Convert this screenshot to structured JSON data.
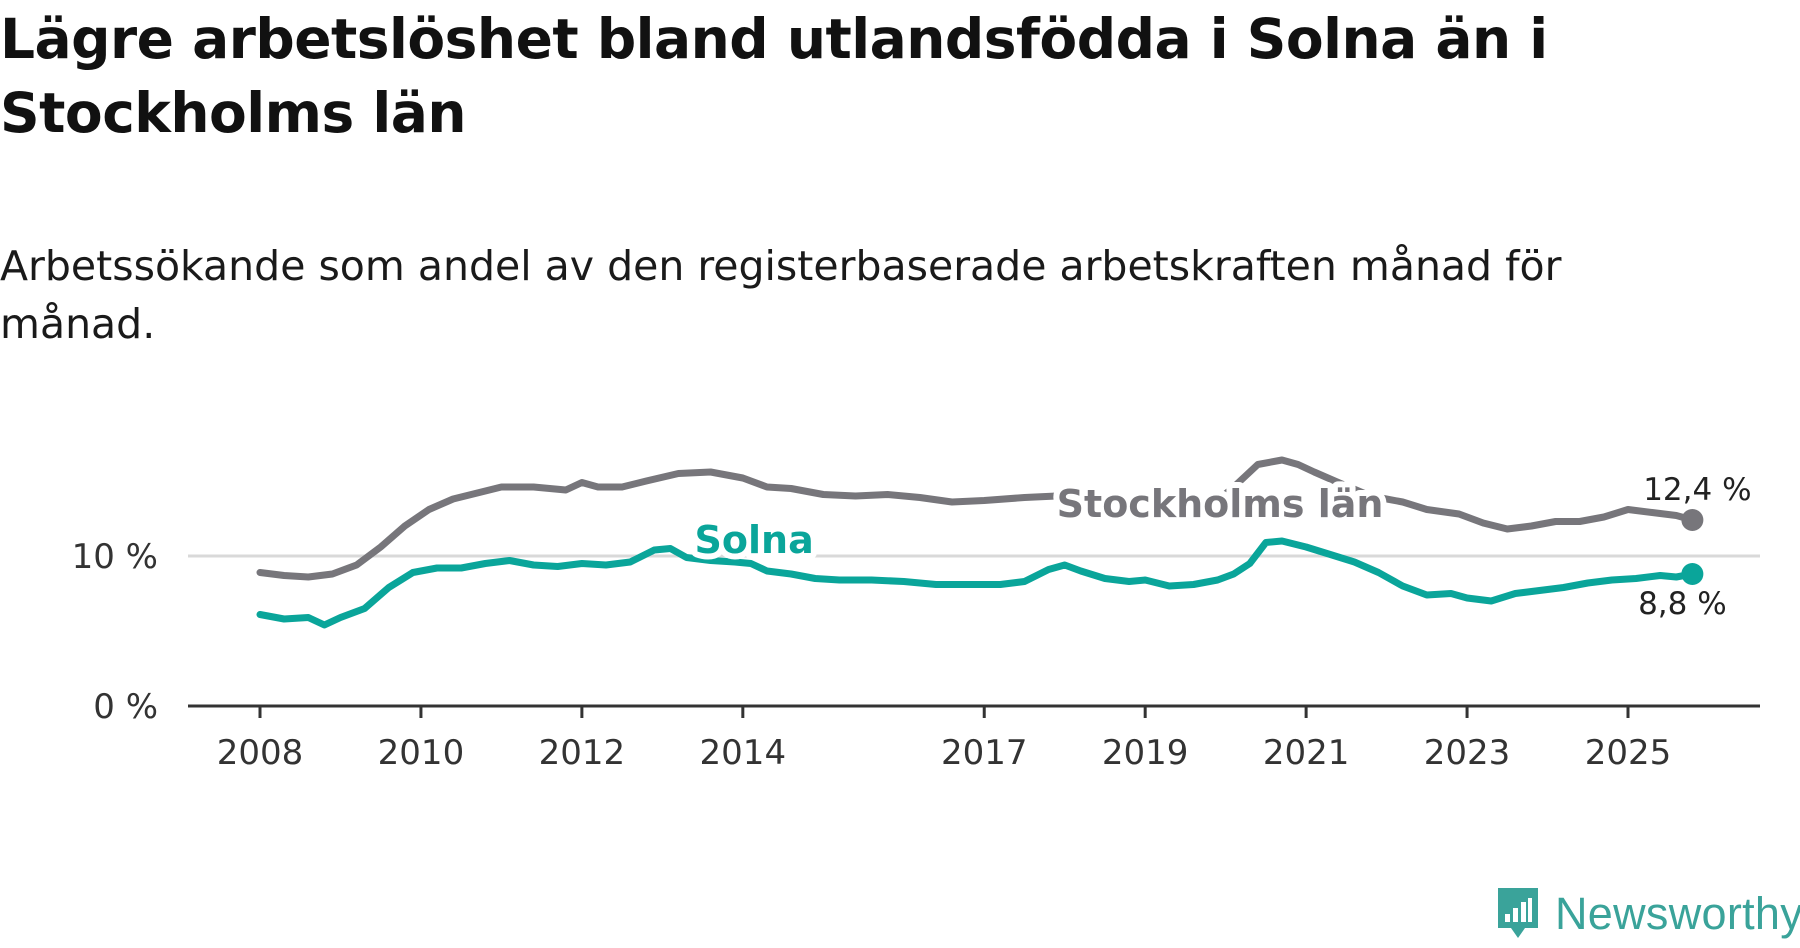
{
  "title": "Lägre arbetslöshet bland utlandsfödda i Solna än i Stockholms län",
  "subtitle": "Arbetssökande som andel av den registerbaserade arbetskraften månad för månad.",
  "brand": {
    "name": "Newsworthy",
    "color": "#3aa39a"
  },
  "colors": {
    "solna": "#0aa59a",
    "stockholm": "#77767b",
    "axis": "#333333",
    "grid": "#d9d9d9"
  },
  "chart_data": {
    "type": "line",
    "title": "Lägre arbetslöshet bland utlandsfödda i Solna än i Stockholms län",
    "xlabel": "",
    "ylabel": "",
    "xlim": [
      2008,
      2026.8
    ],
    "ylim": [
      0,
      17
    ],
    "y_ticks": [
      {
        "value": 0,
        "label": "0 %"
      },
      {
        "value": 10,
        "label": "10 %"
      }
    ],
    "x_ticks": [
      {
        "value": 2008,
        "label": "2008"
      },
      {
        "value": 2010,
        "label": "2010"
      },
      {
        "value": 2012,
        "label": "2012"
      },
      {
        "value": 2014,
        "label": "2014"
      },
      {
        "value": 2017,
        "label": "2017"
      },
      {
        "value": 2019,
        "label": "2019"
      },
      {
        "value": 2021,
        "label": "2021"
      },
      {
        "value": 2023,
        "label": "2023"
      },
      {
        "value": 2025,
        "label": "2025"
      }
    ],
    "series": [
      {
        "name": "Stockholms län",
        "color": "#77767b",
        "label_position": [
          2017.9,
          12.6
        ],
        "end_label": "12,4 %",
        "points": [
          [
            2008.0,
            8.9
          ],
          [
            2008.3,
            8.7
          ],
          [
            2008.6,
            8.6
          ],
          [
            2008.9,
            8.8
          ],
          [
            2009.2,
            9.4
          ],
          [
            2009.5,
            10.6
          ],
          [
            2009.8,
            12.0
          ],
          [
            2010.1,
            13.1
          ],
          [
            2010.4,
            13.8
          ],
          [
            2010.7,
            14.2
          ],
          [
            2011.0,
            14.6
          ],
          [
            2011.4,
            14.6
          ],
          [
            2011.8,
            14.4
          ],
          [
            2012.0,
            14.9
          ],
          [
            2012.2,
            14.6
          ],
          [
            2012.5,
            14.6
          ],
          [
            2012.8,
            15.0
          ],
          [
            2013.2,
            15.5
          ],
          [
            2013.6,
            15.6
          ],
          [
            2014.0,
            15.2
          ],
          [
            2014.3,
            14.6
          ],
          [
            2014.6,
            14.5
          ],
          [
            2015.0,
            14.1
          ],
          [
            2015.4,
            14.0
          ],
          [
            2015.8,
            14.1
          ],
          [
            2016.2,
            13.9
          ],
          [
            2016.6,
            13.6
          ],
          [
            2017.0,
            13.7
          ],
          [
            2017.5,
            13.9
          ],
          [
            2017.9,
            14.0
          ],
          [
            2018.3,
            13.9
          ],
          [
            2018.7,
            13.7
          ],
          [
            2019.1,
            13.6
          ],
          [
            2019.5,
            13.4
          ],
          [
            2019.9,
            13.7
          ],
          [
            2020.1,
            14.6
          ],
          [
            2020.4,
            16.1
          ],
          [
            2020.7,
            16.4
          ],
          [
            2020.9,
            16.1
          ],
          [
            2021.1,
            15.6
          ],
          [
            2021.4,
            14.9
          ],
          [
            2021.8,
            14.0
          ],
          [
            2022.2,
            13.6
          ],
          [
            2022.5,
            13.1
          ],
          [
            2022.9,
            12.8
          ],
          [
            2023.2,
            12.2
          ],
          [
            2023.5,
            11.8
          ],
          [
            2023.8,
            12.0
          ],
          [
            2024.1,
            12.3
          ],
          [
            2024.4,
            12.3
          ],
          [
            2024.7,
            12.6
          ],
          [
            2025.0,
            13.1
          ],
          [
            2025.3,
            12.9
          ],
          [
            2025.6,
            12.7
          ],
          [
            2025.8,
            12.4
          ]
        ]
      },
      {
        "name": "Solna",
        "color": "#0aa59a",
        "label_position": [
          2013.4,
          10.2
        ],
        "end_label": "8,8 %",
        "points": [
          [
            2008.0,
            6.1
          ],
          [
            2008.3,
            5.8
          ],
          [
            2008.6,
            5.9
          ],
          [
            2008.8,
            5.4
          ],
          [
            2009.0,
            5.9
          ],
          [
            2009.3,
            6.5
          ],
          [
            2009.6,
            7.9
          ],
          [
            2009.9,
            8.9
          ],
          [
            2010.2,
            9.2
          ],
          [
            2010.5,
            9.2
          ],
          [
            2010.8,
            9.5
          ],
          [
            2011.1,
            9.7
          ],
          [
            2011.4,
            9.4
          ],
          [
            2011.7,
            9.3
          ],
          [
            2012.0,
            9.5
          ],
          [
            2012.3,
            9.4
          ],
          [
            2012.6,
            9.6
          ],
          [
            2012.9,
            10.4
          ],
          [
            2013.1,
            10.5
          ],
          [
            2013.3,
            9.9
          ],
          [
            2013.6,
            9.7
          ],
          [
            2013.9,
            9.6
          ],
          [
            2014.1,
            9.5
          ],
          [
            2014.3,
            9.0
          ],
          [
            2014.6,
            8.8
          ],
          [
            2014.9,
            8.5
          ],
          [
            2015.2,
            8.4
          ],
          [
            2015.6,
            8.4
          ],
          [
            2016.0,
            8.3
          ],
          [
            2016.4,
            8.1
          ],
          [
            2016.8,
            8.1
          ],
          [
            2017.2,
            8.1
          ],
          [
            2017.5,
            8.3
          ],
          [
            2017.8,
            9.1
          ],
          [
            2018.0,
            9.4
          ],
          [
            2018.2,
            9.0
          ],
          [
            2018.5,
            8.5
          ],
          [
            2018.8,
            8.3
          ],
          [
            2019.0,
            8.4
          ],
          [
            2019.3,
            8.0
          ],
          [
            2019.6,
            8.1
          ],
          [
            2019.9,
            8.4
          ],
          [
            2020.1,
            8.8
          ],
          [
            2020.3,
            9.5
          ],
          [
            2020.5,
            10.9
          ],
          [
            2020.7,
            11.0
          ],
          [
            2021.0,
            10.6
          ],
          [
            2021.3,
            10.1
          ],
          [
            2021.6,
            9.6
          ],
          [
            2021.9,
            8.9
          ],
          [
            2022.2,
            8.0
          ],
          [
            2022.5,
            7.4
          ],
          [
            2022.8,
            7.5
          ],
          [
            2023.0,
            7.2
          ],
          [
            2023.3,
            7.0
          ],
          [
            2023.6,
            7.5
          ],
          [
            2023.9,
            7.7
          ],
          [
            2024.2,
            7.9
          ],
          [
            2024.5,
            8.2
          ],
          [
            2024.8,
            8.4
          ],
          [
            2025.1,
            8.5
          ],
          [
            2025.4,
            8.7
          ],
          [
            2025.6,
            8.6
          ],
          [
            2025.8,
            8.8
          ]
        ]
      }
    ]
  }
}
